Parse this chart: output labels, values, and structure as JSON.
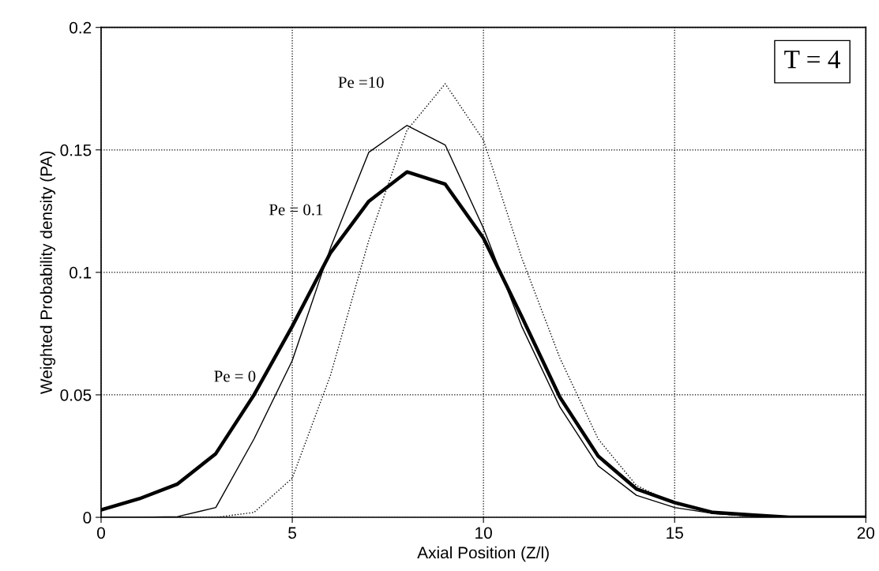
{
  "chart_data": {
    "type": "line",
    "xlabel": "Axial Position (Z/l)",
    "ylabel": "Weighted Probability density (PA)",
    "x": [
      0,
      1,
      2,
      3,
      4,
      5,
      6,
      7,
      8,
      9,
      10,
      11,
      12,
      13,
      14,
      15,
      16,
      17,
      18,
      19,
      20
    ],
    "xlim": [
      0,
      20
    ],
    "xticks": [
      0,
      5,
      10,
      15,
      20
    ],
    "ylim": [
      0,
      0.2
    ],
    "yticks": [
      0,
      0.05,
      0.1,
      0.15,
      0.2
    ],
    "grid": true,
    "legend": false,
    "marker": "none",
    "annotations": [
      "T = 4"
    ],
    "series": [
      {
        "name": "Pe = 0",
        "color": "#000000",
        "line_style": "solid",
        "values": [
          0.003,
          0.0076,
          0.0136,
          0.026,
          0.05,
          0.078,
          0.108,
          0.129,
          0.141,
          0.136,
          0.114,
          0.082,
          0.049,
          0.025,
          0.0116,
          0.006,
          0.002,
          0.001,
          0,
          0,
          0
        ]
      },
      {
        "name": "Pe = 0.1",
        "color": "#000000",
        "line_style": "solid",
        "values": [
          0,
          0,
          0.0003,
          0.004,
          0.032,
          0.064,
          0.11,
          0.149,
          0.16,
          0.152,
          0.118,
          0.078,
          0.045,
          0.021,
          0.009,
          0.004,
          0.0016,
          0.0005,
          0,
          0,
          0
        ]
      },
      {
        "name": "Pe =10",
        "color": "#000000",
        "line_style": "dotted",
        "values": [
          0,
          0,
          0,
          0,
          0.002,
          0.016,
          0.058,
          0.113,
          0.158,
          0.177,
          0.154,
          0.106,
          0.065,
          0.032,
          0.013,
          0.0056,
          0.0016,
          0.0005,
          0,
          0,
          0
        ]
      }
    ]
  }
}
